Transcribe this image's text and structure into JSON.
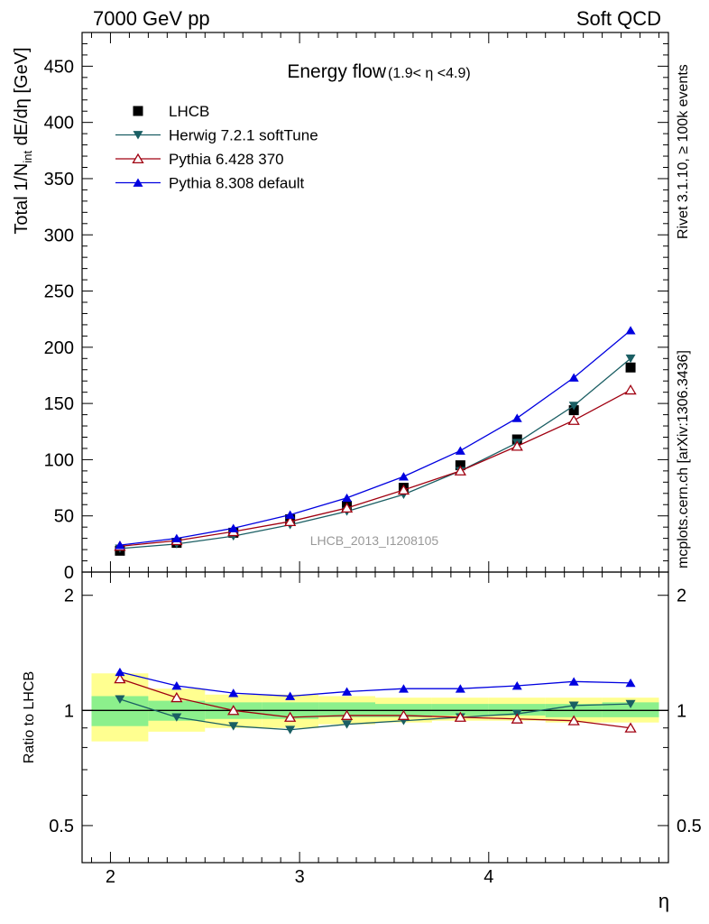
{
  "header": {
    "left": "7000 GeV pp",
    "right": "Soft QCD"
  },
  "side_labels": {
    "rivet": "Rivet 3.1.10, ≥ 100k events",
    "mcplots": "mcplots.cern.ch [arXiv:1306.3436]"
  },
  "title": {
    "main": "Energy flow",
    "range": "(1.9< η <4.9)"
  },
  "watermark": "LHCB_2013_I1208105",
  "colors": {
    "herwig": "#1a5e63",
    "pythia6": "#a00010",
    "pythia8": "#0000e0",
    "data": "#000000",
    "band_inner": "#8cf08c",
    "band_outer": "#ffff90"
  },
  "chart_data": [
    {
      "type": "line",
      "ylabel": "Total 1/N_int dE/dη [GeV]",
      "xlabel": "",
      "ylim": [
        0,
        480
      ],
      "xlim": [
        1.85,
        4.95
      ],
      "y_ticks": [
        0,
        50,
        100,
        150,
        200,
        250,
        300,
        350,
        400,
        450
      ],
      "legend_position": "top-left",
      "x": [
        2.05,
        2.35,
        2.65,
        2.95,
        3.25,
        3.55,
        3.85,
        4.15,
        4.45,
        4.75
      ],
      "series": [
        {
          "name": "LHCB",
          "marker": "square",
          "values": [
            19,
            26,
            35,
            47,
            59,
            75,
            95,
            118,
            144,
            182
          ]
        },
        {
          "name": "Herwig 7.2.1 softTune",
          "marker": "triangle-down",
          "values": [
            21,
            25,
            32,
            42,
            54,
            69,
            90,
            115,
            148,
            190
          ]
        },
        {
          "name": "Pythia 6.428 370",
          "marker": "triangle-open",
          "values": [
            23,
            28,
            36,
            45,
            57,
            73,
            90,
            112,
            135,
            162
          ]
        },
        {
          "name": "Pythia 8.308 default",
          "marker": "triangle-up",
          "values": [
            24,
            30,
            39,
            51,
            66,
            85,
            108,
            137,
            173,
            215
          ]
        }
      ]
    },
    {
      "type": "line",
      "ylabel": "Ratio to LHCB",
      "xlabel": "η",
      "ylim": [
        0.4,
        2.3
      ],
      "xlim": [
        1.85,
        4.95
      ],
      "x_ticks": [
        2,
        3,
        4
      ],
      "y_ticks": [
        0.5,
        1,
        2
      ],
      "y_scale": "log",
      "x": [
        2.05,
        2.35,
        2.65,
        2.95,
        3.25,
        3.55,
        3.85,
        4.15,
        4.45,
        4.75
      ],
      "bin_edges": [
        1.9,
        2.2,
        2.5,
        2.8,
        3.1,
        3.4,
        3.7,
        4.0,
        4.3,
        4.6,
        4.9
      ],
      "band_outer": {
        "low": [
          0.83,
          0.88,
          0.9,
          0.9,
          0.92,
          0.93,
          0.94,
          0.94,
          0.93,
          0.93
        ],
        "high": [
          1.25,
          1.14,
          1.1,
          1.1,
          1.09,
          1.08,
          1.08,
          1.08,
          1.08,
          1.08
        ]
      },
      "band_inner": {
        "low": [
          0.91,
          0.94,
          0.95,
          0.95,
          0.96,
          0.96,
          0.97,
          0.97,
          0.96,
          0.96
        ],
        "high": [
          1.09,
          1.06,
          1.05,
          1.05,
          1.05,
          1.04,
          1.04,
          1.04,
          1.04,
          1.05
        ]
      },
      "series": [
        {
          "name": "Herwig 7.2.1 softTune",
          "values": [
            1.07,
            0.96,
            0.91,
            0.89,
            0.92,
            0.94,
            0.96,
            0.98,
            1.03,
            1.04
          ]
        },
        {
          "name": "Pythia 6.428 370",
          "values": [
            1.21,
            1.08,
            1.0,
            0.96,
            0.97,
            0.97,
            0.96,
            0.95,
            0.94,
            0.9
          ]
        },
        {
          "name": "Pythia 8.308 default",
          "values": [
            1.26,
            1.16,
            1.11,
            1.09,
            1.12,
            1.14,
            1.14,
            1.16,
            1.19,
            1.18
          ]
        }
      ]
    }
  ]
}
